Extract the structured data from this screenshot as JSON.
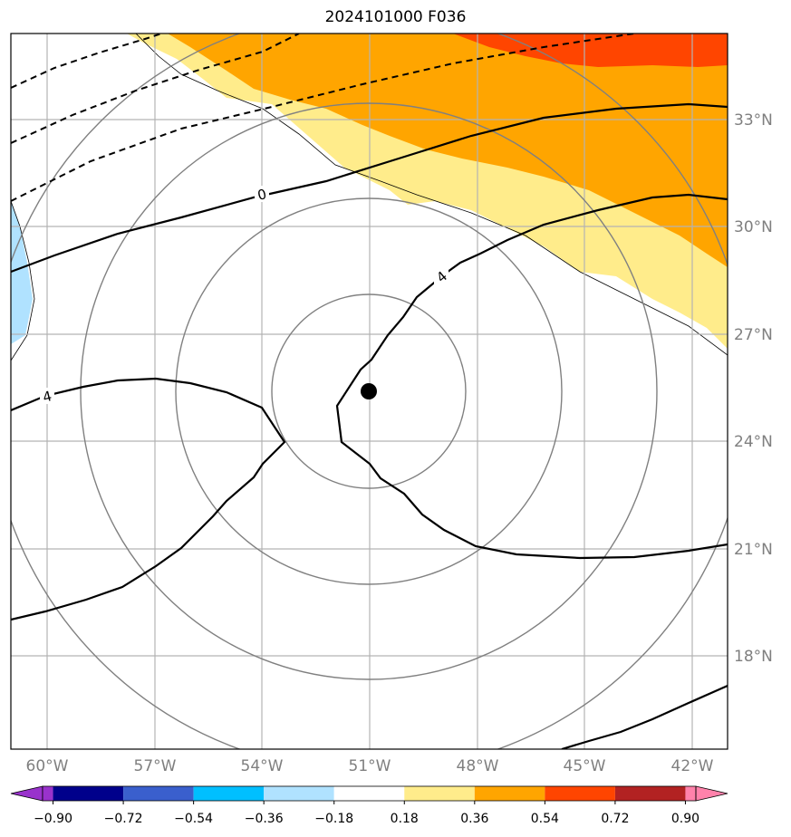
{
  "title": "2024101000 F036",
  "map": {
    "lon_labels": [
      "60°W",
      "57°W",
      "54°W",
      "51°W",
      "48°W",
      "45°W",
      "42°W"
    ],
    "lat_labels": [
      "33°N",
      "30°N",
      "27°N",
      "24°N",
      "21°N",
      "18°N"
    ],
    "contour_labels": [
      "0",
      "4",
      "4"
    ],
    "center_marker": {
      "lon": -51.0,
      "lat": 25.3
    },
    "range_rings": 4
  },
  "colorbar": {
    "tick_labels": [
      "−0.90",
      "−0.72",
      "−0.54",
      "−0.36",
      "−0.18",
      "0.18",
      "0.36",
      "0.54",
      "0.72",
      "0.90"
    ],
    "colors": [
      "#9932cc",
      "#00008b",
      "#3a5fcd",
      "#00bfff",
      "#b0e2ff",
      "#ffffff",
      "#ffec8b",
      "#ffa500",
      "#ff4500",
      "#b22222",
      "#ff82ab"
    ],
    "extend": "both"
  }
}
